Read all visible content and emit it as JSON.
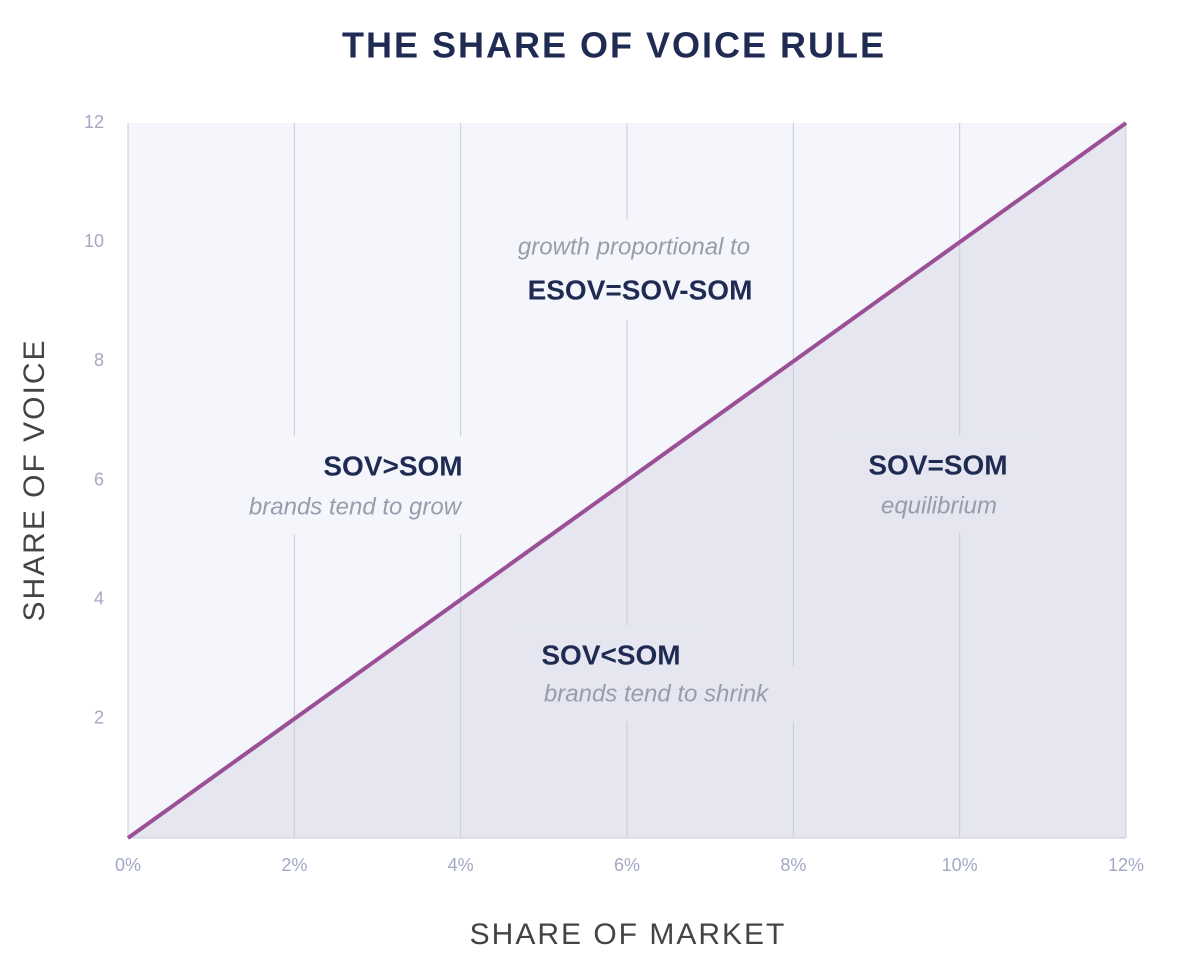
{
  "chart_data": {
    "type": "line",
    "title": "THE SHARE OF VOICE RULE",
    "x_label": "SHARE OF MARKET",
    "y_label": "SHARE OF VOICE",
    "x": [
      0,
      12
    ],
    "values": [
      0,
      12
    ],
    "color": "#9b4f96",
    "xlim": [
      0,
      12
    ],
    "ylim": [
      0,
      12
    ],
    "xticks": [
      {
        "value": 0,
        "label": "0%"
      },
      {
        "value": 2,
        "label": "2%"
      },
      {
        "value": 4,
        "label": "4%"
      },
      {
        "value": 6,
        "label": "6%"
      },
      {
        "value": 8,
        "label": "8%"
      },
      {
        "value": 10,
        "label": "10%"
      },
      {
        "value": 12,
        "label": "12%"
      }
    ],
    "yticks": [
      2,
      4,
      6,
      8,
      10,
      12
    ],
    "grid": true,
    "annotations": [
      "growth proportional to",
      "ESOV=SOV-SOM",
      "SOV>SOM",
      "brands tend to grow",
      "SOV=SOM",
      "equilibrium",
      "SOV<SOM",
      "brands tend to shrink"
    ]
  }
}
